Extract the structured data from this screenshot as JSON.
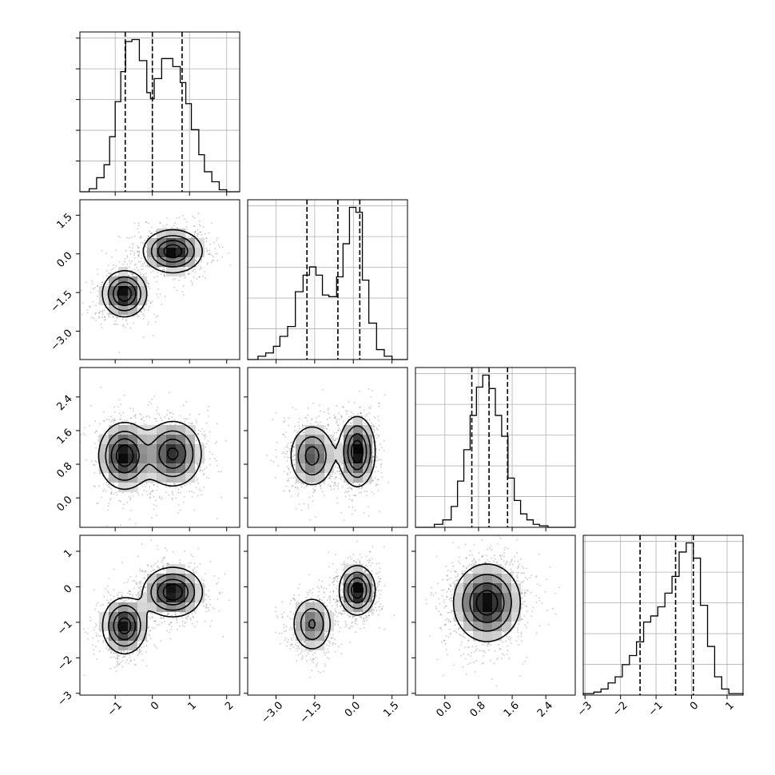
{
  "chart_data": {
    "type": "corner",
    "n_params": 4,
    "grid": true,
    "scatter_color": "#000000",
    "hist_color": "#000000",
    "x_ticks": [
      {
        "values": [
          -1,
          0,
          1,
          2
        ],
        "labels": [
          "−1",
          "0",
          "1",
          "2"
        ],
        "range": [
          -1.95,
          2.35
        ]
      },
      {
        "values": [
          -3.0,
          -1.5,
          0.0,
          1.5
        ],
        "labels": [
          "−3.0",
          "−1.5",
          "0.0",
          "1.5"
        ],
        "range": [
          -4.1,
          2.1
        ]
      },
      {
        "values": [
          0.0,
          0.8,
          1.6,
          2.4
        ],
        "labels": [
          "0.0",
          "0.8",
          "1.6",
          "2.4"
        ],
        "range": [
          -0.7,
          3.1
        ]
      },
      {
        "values": [
          -3,
          -2,
          -1,
          0,
          1
        ],
        "labels": [
          "−3",
          "−2",
          "−1",
          "0",
          "1"
        ],
        "range": [
          -3.05,
          1.45
        ]
      }
    ],
    "y_ticks": [
      null,
      {
        "values": [
          1.5,
          0.0,
          -1.5,
          -3.0
        ],
        "labels": [
          "1.5",
          "0.0",
          "−1.5",
          "−3.0"
        ]
      },
      {
        "values": [
          2.4,
          1.6,
          0.8,
          0.0
        ],
        "labels": [
          "2.4",
          "1.6",
          "0.8",
          "0.0"
        ]
      },
      {
        "values": [
          1,
          0,
          -1,
          -2,
          -3
        ],
        "labels": [
          "1",
          "0",
          "−1",
          "−2",
          "−3"
        ]
      }
    ],
    "histograms": [
      {
        "param": 0,
        "bins": [
          -1.95,
          -1.7,
          -1.5,
          -1.3,
          -1.15,
          -1.0,
          -0.85,
          -0.72,
          -0.55,
          -0.35,
          -0.15,
          -0.05,
          0.05,
          0.25,
          0.4,
          0.55,
          0.75,
          0.9,
          1.05,
          1.25,
          1.4,
          1.6,
          1.8,
          2.0,
          2.35
        ],
        "counts": [
          0,
          3,
          14,
          27,
          55,
          90,
          120,
          150,
          152,
          131,
          99,
          93,
          113,
          133,
          133,
          125,
          109,
          88,
          62,
          37,
          20,
          10,
          2,
          0
        ],
        "quantiles": [
          -0.73,
          0.0,
          0.8
        ]
      },
      {
        "param": 1,
        "bins": [
          -4.1,
          -3.7,
          -3.4,
          -3.1,
          -2.85,
          -2.55,
          -2.25,
          -1.95,
          -1.7,
          -1.45,
          -1.2,
          -0.95,
          -0.65,
          -0.4,
          -0.15,
          0.1,
          0.35,
          0.6,
          0.9,
          1.2,
          1.5,
          2.1
        ],
        "counts": [
          0,
          2,
          4,
          8,
          14,
          20,
          41,
          51,
          56,
          51,
          39,
          38,
          50,
          70,
          92,
          89,
          48,
          22,
          6,
          2,
          0
        ],
        "quantiles": [
          -1.8,
          -0.6,
          0.25
        ]
      },
      {
        "param": 2,
        "bins": [
          -0.7,
          -0.25,
          -0.05,
          0.15,
          0.3,
          0.45,
          0.6,
          0.75,
          0.9,
          1.05,
          1.2,
          1.35,
          1.5,
          1.65,
          1.8,
          1.95,
          2.1,
          2.25,
          2.45,
          2.65,
          3.1
        ],
        "counts": [
          0,
          2,
          5,
          14,
          31,
          52,
          75,
          94,
          102,
          93,
          75,
          61,
          33,
          18,
          9,
          5,
          2,
          1,
          0,
          0
        ],
        "quantiles": [
          0.64,
          1.05,
          1.49
        ]
      },
      {
        "param": 3,
        "bins": [
          -3.05,
          -2.75,
          -2.55,
          -2.35,
          -2.15,
          -1.95,
          -1.75,
          -1.55,
          -1.35,
          -1.15,
          -0.95,
          -0.75,
          -0.55,
          -0.35,
          -0.15,
          0.05,
          0.25,
          0.45,
          0.65,
          0.85,
          1.05,
          1.45
        ],
        "counts": [
          1,
          2,
          4,
          8,
          12,
          20,
          26,
          35,
          48,
          52,
          58,
          67,
          78,
          94,
          100,
          90,
          59,
          32,
          12,
          4,
          1
        ],
        "quantiles": [
          -1.45,
          -0.45,
          0.05
        ]
      }
    ],
    "pairs": [
      {
        "x_param": 0,
        "y_param": 1,
        "modes": [
          {
            "mean": [
              -0.75,
              -1.55
            ],
            "sd": [
              0.3,
              0.45
            ],
            "weight": 0.45
          },
          {
            "mean": [
              0.55,
              0.1
            ],
            "sd": [
              0.4,
              0.42
            ],
            "weight": 0.55
          }
        ],
        "contour_levels": 4
      },
      {
        "x_param": 0,
        "y_param": 2,
        "modes": [
          {
            "mean": [
              -0.75,
              1.0
            ],
            "sd": [
              0.35,
              0.4
            ],
            "weight": 0.5
          },
          {
            "mean": [
              0.55,
              1.05
            ],
            "sd": [
              0.4,
              0.4
            ],
            "weight": 0.5
          }
        ],
        "contour_levels": 4
      },
      {
        "x_param": 1,
        "y_param": 2,
        "modes": [
          {
            "mean": [
              -1.6,
              1.0
            ],
            "sd": [
              0.45,
              0.38
            ],
            "weight": 0.45
          },
          {
            "mean": [
              0.15,
              1.1
            ],
            "sd": [
              0.35,
              0.42
            ],
            "weight": 0.55
          }
        ],
        "contour_levels": 4
      },
      {
        "x_param": 0,
        "y_param": 3,
        "modes": [
          {
            "mean": [
              -0.75,
              -1.1
            ],
            "sd": [
              0.3,
              0.4
            ],
            "weight": 0.45
          },
          {
            "mean": [
              0.55,
              -0.15
            ],
            "sd": [
              0.4,
              0.35
            ],
            "weight": 0.55
          }
        ],
        "contour_levels": 4
      },
      {
        "x_param": 1,
        "y_param": 3,
        "modes": [
          {
            "mean": [
              -1.6,
              -1.05
            ],
            "sd": [
              0.4,
              0.4
            ],
            "weight": 0.45
          },
          {
            "mean": [
              0.15,
              -0.1
            ],
            "sd": [
              0.35,
              0.35
            ],
            "weight": 0.55
          }
        ],
        "contour_levels": 4
      },
      {
        "x_param": 2,
        "y_param": 3,
        "modes": [
          {
            "mean": [
              1.0,
              -0.45
            ],
            "sd": [
              0.4,
              0.55
            ],
            "weight": 1.0
          }
        ],
        "contour_levels": 4
      }
    ]
  }
}
